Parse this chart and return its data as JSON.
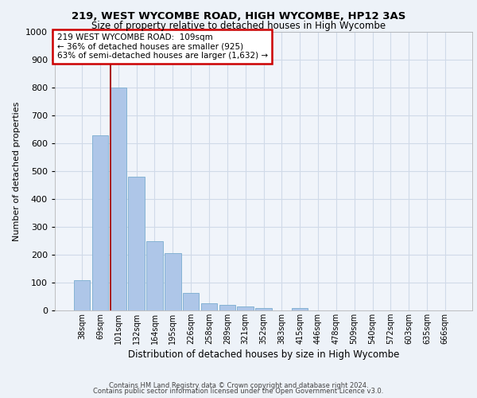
{
  "title1": "219, WEST WYCOMBE ROAD, HIGH WYCOMBE, HP12 3AS",
  "title2": "Size of property relative to detached houses in High Wycombe",
  "xlabel": "Distribution of detached houses by size in High Wycombe",
  "ylabel": "Number of detached properties",
  "bar_labels": [
    "38sqm",
    "69sqm",
    "101sqm",
    "132sqm",
    "164sqm",
    "195sqm",
    "226sqm",
    "258sqm",
    "289sqm",
    "321sqm",
    "352sqm",
    "383sqm",
    "415sqm",
    "446sqm",
    "478sqm",
    "509sqm",
    "540sqm",
    "572sqm",
    "603sqm",
    "635sqm",
    "666sqm"
  ],
  "bar_values": [
    110,
    630,
    800,
    480,
    250,
    205,
    62,
    27,
    20,
    15,
    10,
    0,
    10,
    0,
    0,
    0,
    0,
    0,
    0,
    0,
    0
  ],
  "bar_color": "#aec6e8",
  "bar_edgecolor": "#7aadcf",
  "vline_x_index": 2,
  "property_line_label": "219 WEST WYCOMBE ROAD:  109sqm",
  "annotation_line1": "← 36% of detached houses are smaller (925)",
  "annotation_line2": "63% of semi-detached houses are larger (1,632) →",
  "annotation_box_color": "#ffffff",
  "annotation_box_edgecolor": "#cc0000",
  "vline_color": "#aa2222",
  "ylim": [
    0,
    1000
  ],
  "yticks": [
    0,
    100,
    200,
    300,
    400,
    500,
    600,
    700,
    800,
    900,
    1000
  ],
  "footer1": "Contains HM Land Registry data © Crown copyright and database right 2024.",
  "footer2": "Contains public sector information licensed under the Open Government Licence v3.0.",
  "bg_color": "#edf2f8",
  "plot_bg_color": "#f0f4fa",
  "grid_color": "#d0dae8"
}
